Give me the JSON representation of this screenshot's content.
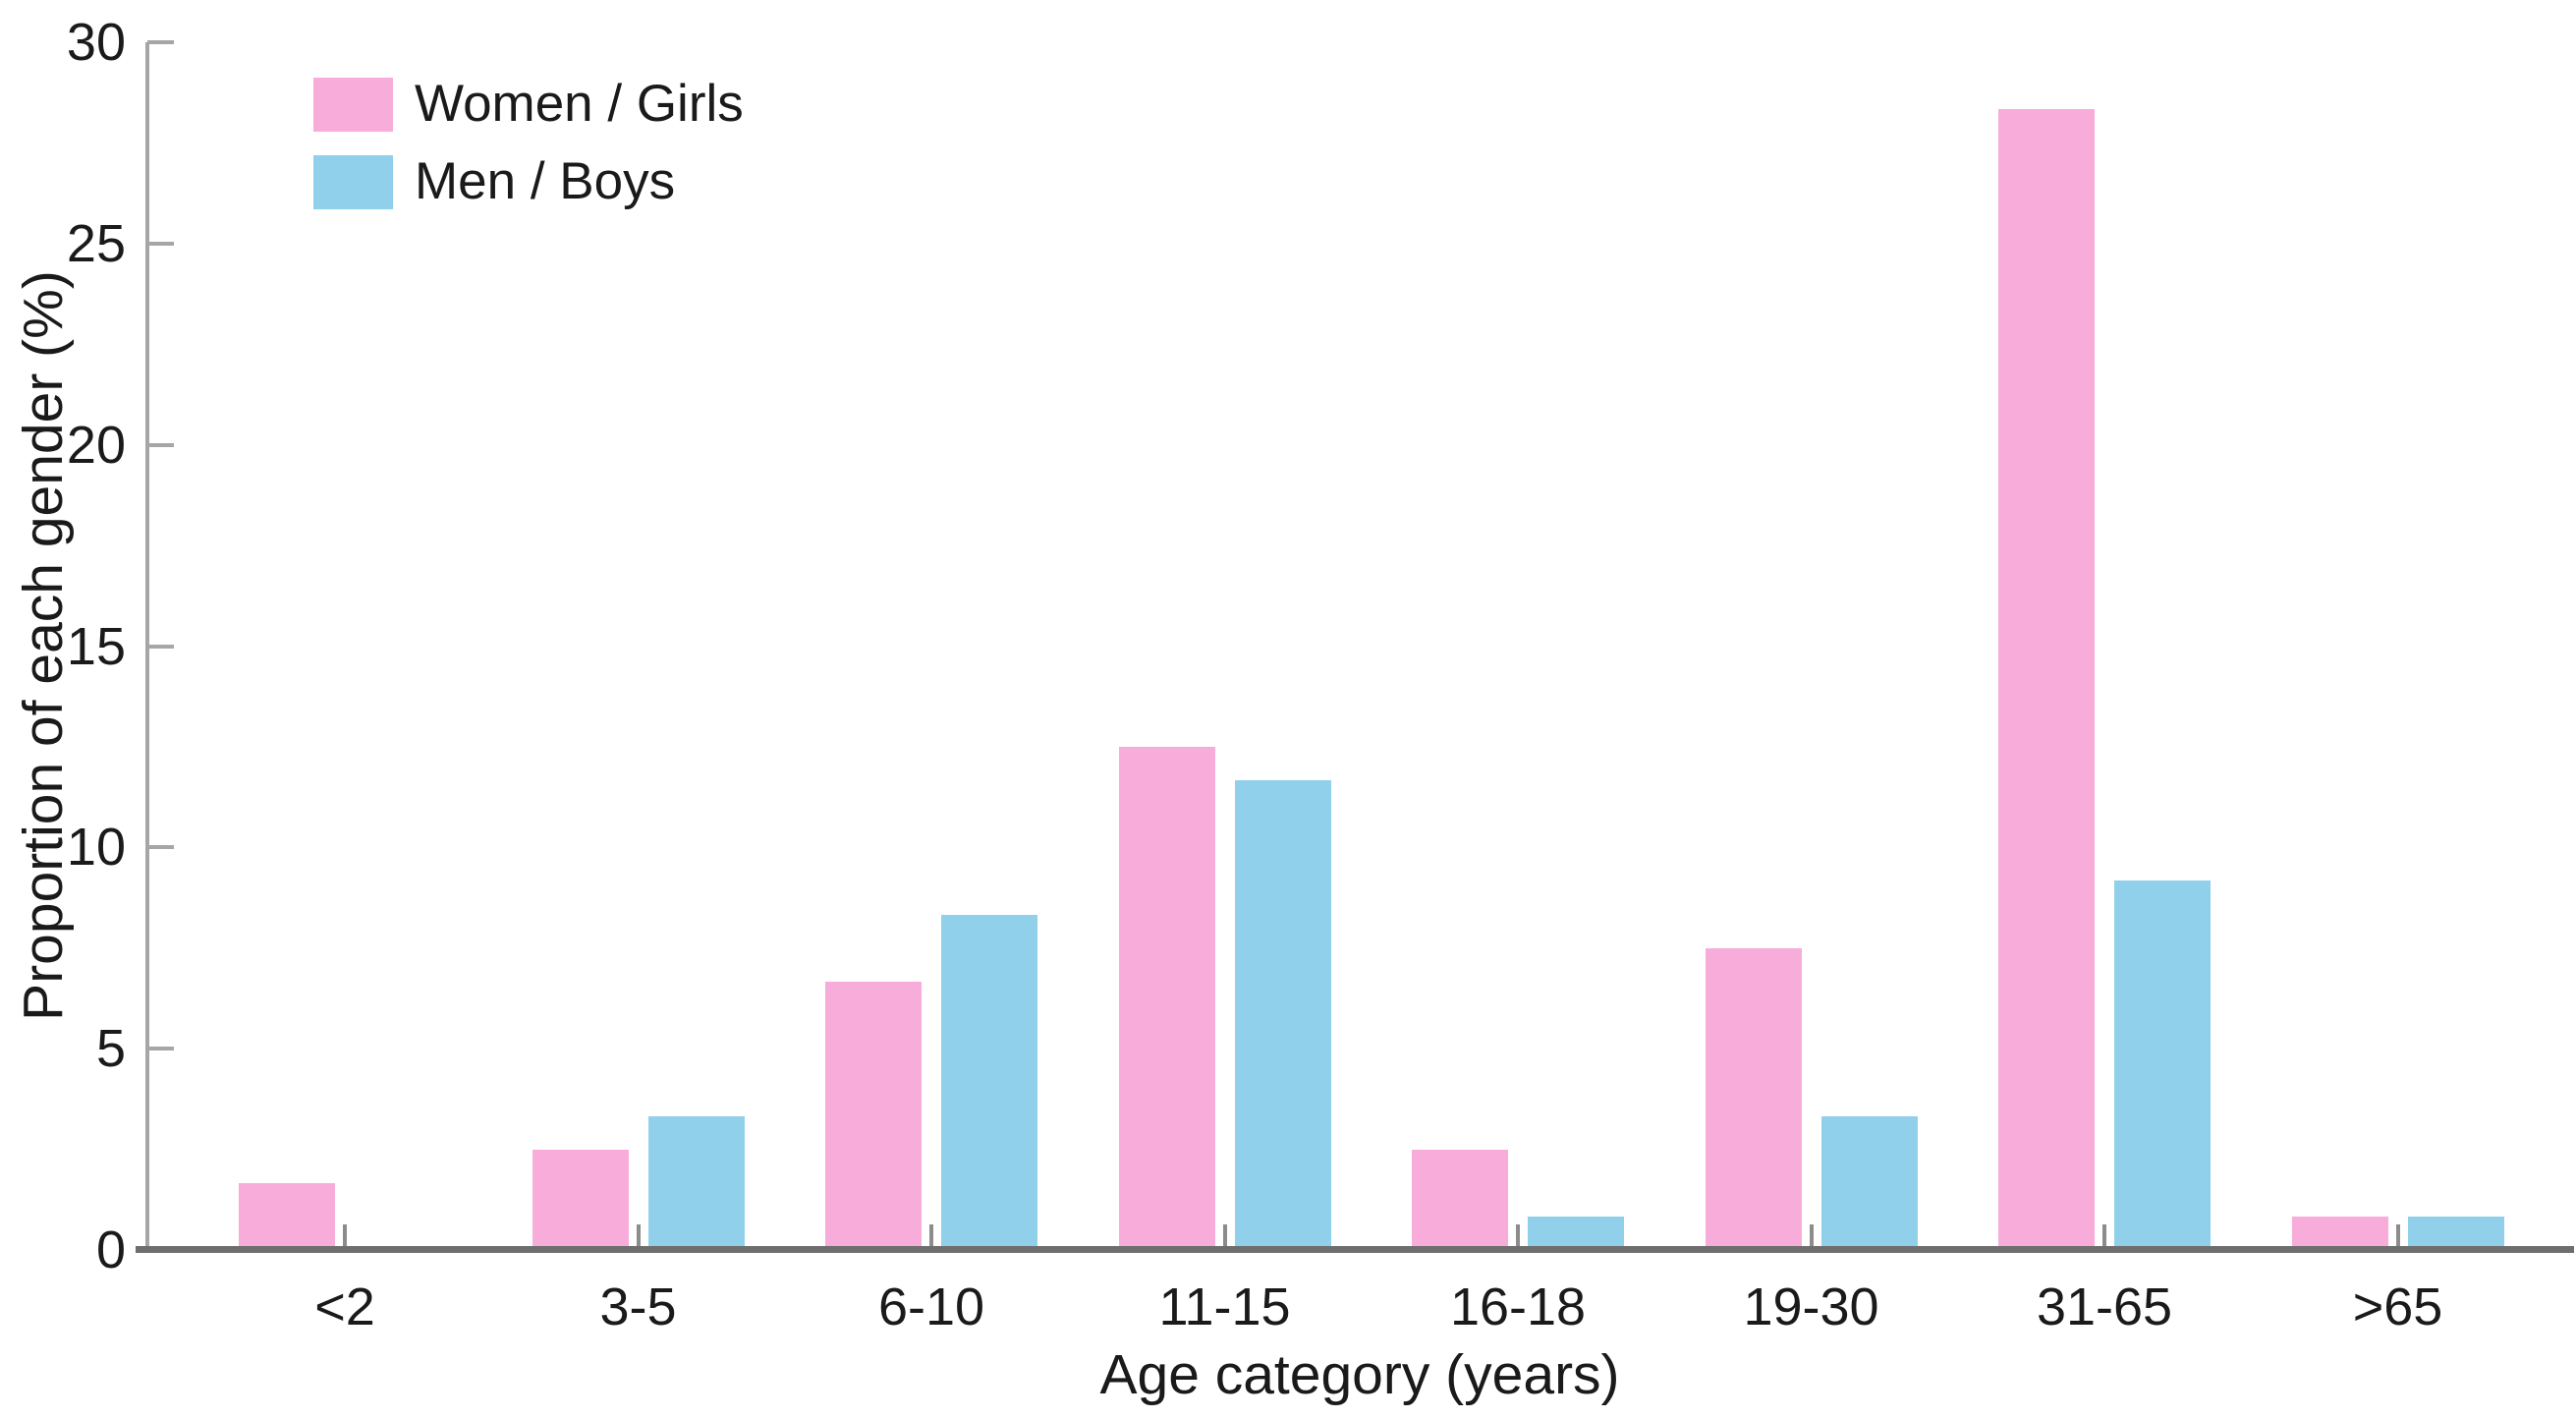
{
  "chart_data": {
    "type": "bar",
    "title": "",
    "xlabel": "Age category (years)",
    "ylabel": "Proportion of each gender (%)",
    "categories": [
      "<2",
      "3-5",
      "6-10",
      "11-15",
      "16-18",
      "19-30",
      "31-65",
      ">65"
    ],
    "series": [
      {
        "name": "Women / Girls",
        "color": "#F8ACDA",
        "values": [
          1.67,
          2.5,
          6.67,
          12.5,
          2.5,
          7.5,
          28.33,
          0.83
        ]
      },
      {
        "name": "Men / Boys",
        "color": "#90D0EA",
        "values": [
          0.08,
          3.33,
          8.33,
          11.67,
          0.83,
          3.33,
          9.17,
          0.83
        ]
      }
    ],
    "ylim": [
      0,
      30
    ],
    "yticks": [
      0,
      5,
      10,
      15,
      20,
      25,
      30
    ],
    "grid": false,
    "legend_position": "top-left",
    "axis_colors": {
      "x_axis_line": "#6e6e6e",
      "y_axis_line": "#a6a6a6",
      "tick_text": "#1a1a1a"
    }
  }
}
